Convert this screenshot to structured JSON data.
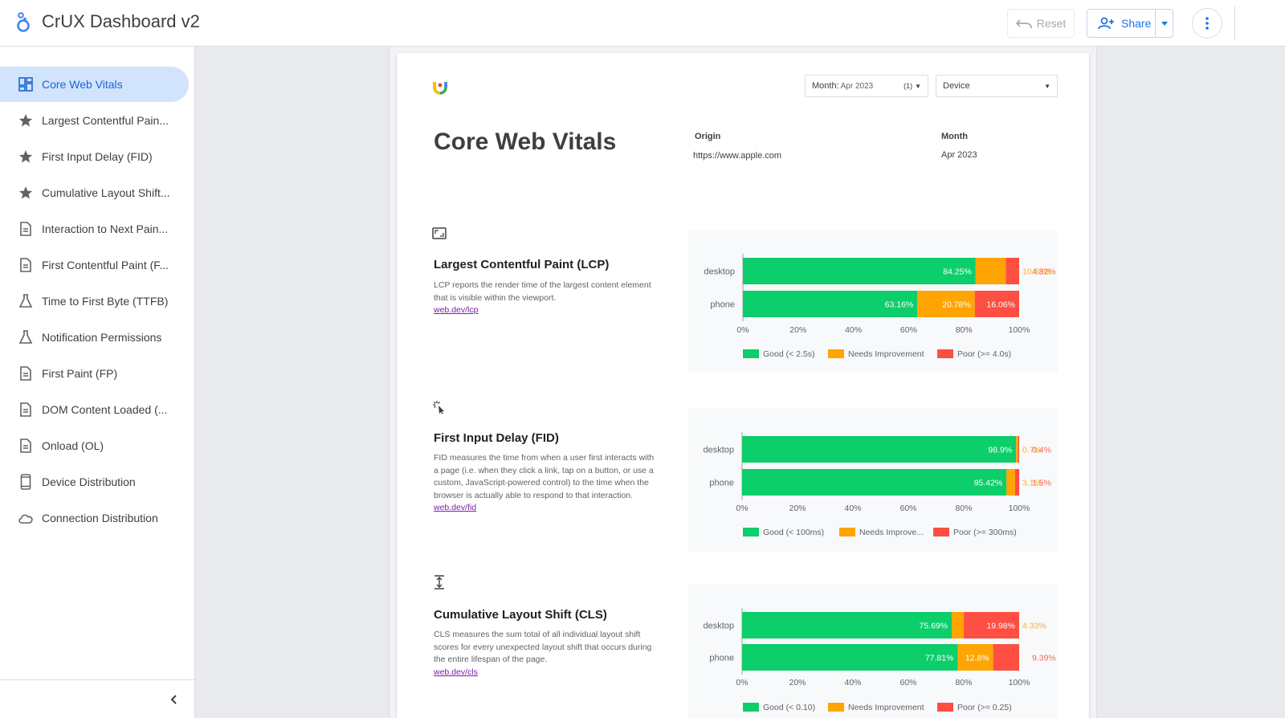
{
  "app": {
    "title": "CrUX Dashboard v2",
    "reset_label": "Reset",
    "share_label": "Share"
  },
  "sidebar": {
    "items": [
      {
        "label": "Core Web Vitals",
        "icon": "dashboard-icon",
        "active": true
      },
      {
        "label": "Largest Contentful Pain...",
        "icon": "star-icon"
      },
      {
        "label": "First Input Delay (FID)",
        "icon": "star-icon"
      },
      {
        "label": "Cumulative Layout Shift...",
        "icon": "star-icon"
      },
      {
        "label": "Interaction to Next Pain...",
        "icon": "document-icon"
      },
      {
        "label": "First Contentful Paint (F...",
        "icon": "document-icon"
      },
      {
        "label": "Time to First Byte (TTFB)",
        "icon": "flask-icon"
      },
      {
        "label": "Notification Permissions",
        "icon": "flask-icon"
      },
      {
        "label": "First Paint (FP)",
        "icon": "document-icon"
      },
      {
        "label": "DOM Content Loaded (...",
        "icon": "document-icon"
      },
      {
        "label": "Onload (OL)",
        "icon": "document-icon"
      },
      {
        "label": "Device Distribution",
        "icon": "phone-icon"
      },
      {
        "label": "Connection Distribution",
        "icon": "cloud-icon"
      }
    ]
  },
  "filters": {
    "month_label": "Month:",
    "month_value": "Apr 2023",
    "month_count": "(1)",
    "device_label": "Device"
  },
  "report": {
    "title": "Core Web Vitals",
    "origin_label": "Origin",
    "origin_value": "https://www.apple.com",
    "month_label": "Month",
    "month_value": "Apr 2023"
  },
  "sections": [
    {
      "title": "Largest Contentful Paint (LCP)",
      "description": "LCP reports the render time of the largest content element that is visible within the viewport.",
      "link": "web.dev/lcp",
      "icon": "image-frame-icon"
    },
    {
      "title": "First Input Delay (FID)",
      "description": "FID measures the time from when a user first interacts with a page (i.e. when they click a link, tap on a button, or use a custom, JavaScript-powered control) to the time when the browser is actually able to respond to that interaction.",
      "link": "web.dev/fid",
      "icon": "cursor-click-icon"
    },
    {
      "title": "Cumulative Layout Shift (CLS)",
      "description": "CLS measures the sum total of all individual layout shift scores for every unexpected layout shift that occurs during the entire lifespan of the page.",
      "link": "web.dev/cls",
      "icon": "vertical-shift-icon"
    }
  ],
  "colors": {
    "good": "#0cce6b",
    "needs_improvement": "#ffa400",
    "poor": "#ff4e42",
    "accent": "#1a73e8"
  },
  "chart_data": [
    {
      "type": "bar",
      "orientation": "horizontal",
      "stacked": true,
      "categories": [
        "desktop",
        "phone"
      ],
      "series": [
        {
          "name": "Good (< 2.5s)",
          "values": [
            84.25,
            63.16
          ],
          "labels": [
            "84.25%",
            "63.16%"
          ]
        },
        {
          "name": "Needs Improvement",
          "values": [
            10.93,
            20.78
          ],
          "labels": [
            "10.93%",
            "20.78%"
          ]
        },
        {
          "name": "Poor (>= 4.0s)",
          "values": [
            4.82,
            16.06
          ],
          "labels": [
            "4.82%",
            "16.06%"
          ]
        }
      ],
      "xticks": [
        "0%",
        "20%",
        "40%",
        "60%",
        "80%",
        "100%"
      ],
      "xlim": [
        0,
        100
      ],
      "legend": "bottom"
    },
    {
      "type": "bar",
      "orientation": "horizontal",
      "stacked": true,
      "categories": [
        "desktop",
        "phone"
      ],
      "series": [
        {
          "name": "Good (< 100ms)",
          "values": [
            98.9,
            95.42
          ],
          "labels": [
            "98.9%",
            "95.42%"
          ]
        },
        {
          "name": "Needs Improve...",
          "values": [
            0.7,
            3.1
          ],
          "labels": [
            "0.7%",
            "3.1%"
          ]
        },
        {
          "name": "Poor (>= 300ms)",
          "values": [
            0.4,
            1.5
          ],
          "labels": [
            "0.4%",
            "1.5%"
          ]
        }
      ],
      "xticks": [
        "0%",
        "20%",
        "40%",
        "60%",
        "80%",
        "100%"
      ],
      "xlim": [
        0,
        100
      ],
      "legend": "bottom"
    },
    {
      "type": "bar",
      "orientation": "horizontal",
      "stacked": true,
      "categories": [
        "desktop",
        "phone"
      ],
      "series": [
        {
          "name": "Good (< 0.10)",
          "values": [
            75.69,
            77.81
          ],
          "labels": [
            "75.69%",
            "77.81%"
          ]
        },
        {
          "name": "Needs Improvement",
          "values": [
            4.33,
            12.8
          ],
          "labels": [
            "4.33%",
            "12.8%"
          ]
        },
        {
          "name": "Poor (>= 0.25)",
          "values": [
            19.98,
            9.39
          ],
          "labels": [
            "19.98%",
            "9.39%"
          ]
        }
      ],
      "xticks": [
        "0%",
        "20%",
        "40%",
        "60%",
        "80%",
        "100%"
      ],
      "xlim": [
        0,
        100
      ],
      "legend": "bottom"
    }
  ]
}
